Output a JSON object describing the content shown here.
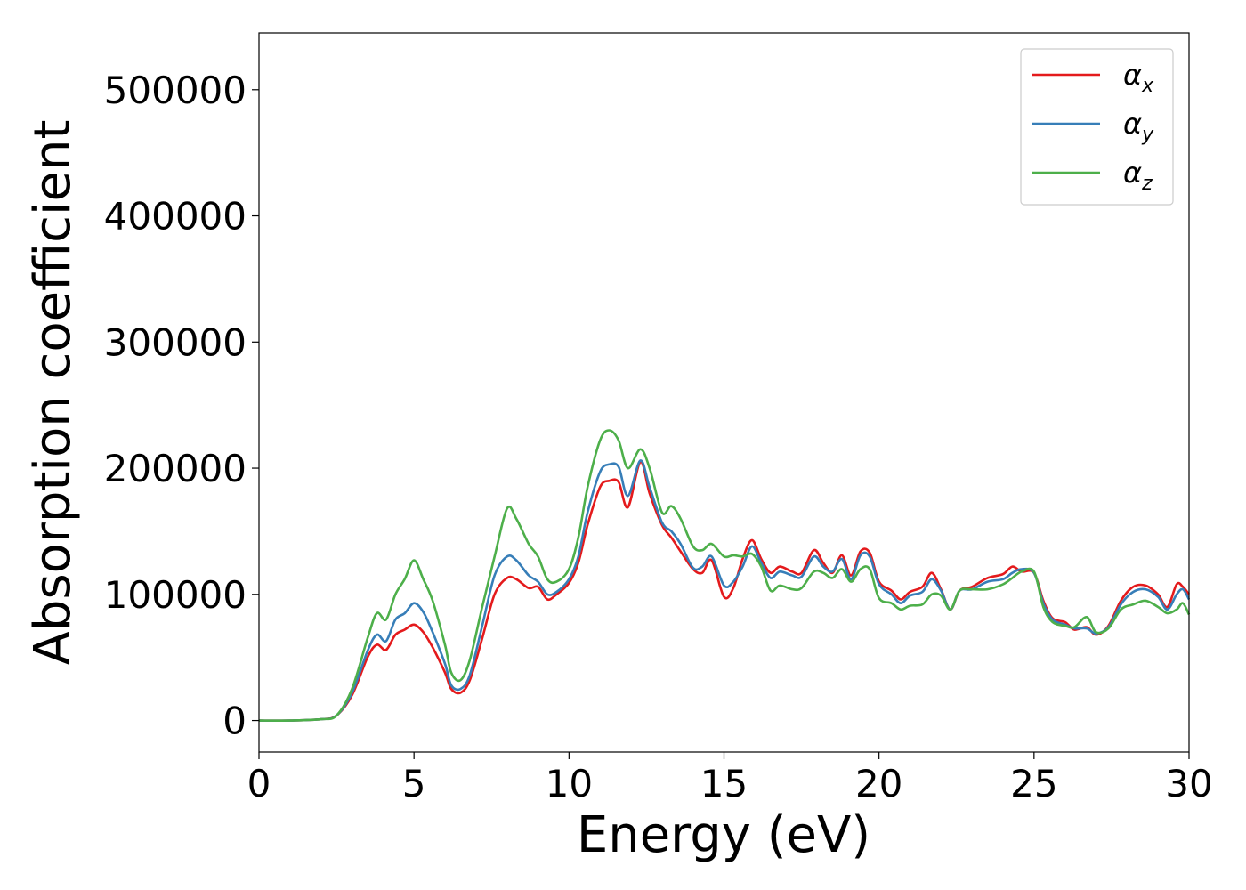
{
  "chart_data": {
    "type": "line",
    "xlabel": "Energy (eV)",
    "ylabel": "Absorption coefficient",
    "xlim": [
      0,
      30
    ],
    "ylim": [
      -25000,
      545000
    ],
    "xticks": [
      0,
      5,
      10,
      15,
      20,
      25,
      30
    ],
    "yticks": [
      0,
      100000,
      200000,
      300000,
      400000,
      500000
    ],
    "grid": false,
    "legend_position": "top-right",
    "series": [
      {
        "name": "α_x",
        "label_main": "α",
        "label_sub": "x",
        "color": "#e41a1c",
        "x": [
          0,
          1,
          2,
          2.5,
          3,
          3.5,
          3.8,
          4.1,
          4.4,
          4.7,
          5,
          5.3,
          5.6,
          6,
          6.2,
          6.5,
          6.8,
          7.2,
          7.6,
          8,
          8.3,
          8.7,
          9,
          9.3,
          9.6,
          10,
          10.3,
          10.6,
          11,
          11.3,
          11.6,
          11.9,
          12.3,
          12.6,
          13,
          13.3,
          13.6,
          14,
          14.3,
          14.6,
          15,
          15.3,
          15.6,
          15.9,
          16.2,
          16.5,
          16.8,
          17.2,
          17.5,
          17.9,
          18.2,
          18.5,
          18.8,
          19.1,
          19.4,
          19.7,
          20,
          20.4,
          20.7,
          21,
          21.4,
          21.7,
          22,
          22.3,
          22.6,
          23,
          23.5,
          24,
          24.3,
          24.6,
          25,
          25.3,
          25.6,
          26,
          26.3,
          26.7,
          27,
          27.4,
          27.8,
          28.2,
          28.6,
          29,
          29.3,
          29.6,
          29.8,
          30
        ],
        "y": [
          0,
          0,
          1000,
          4000,
          20000,
          50000,
          60000,
          56000,
          68000,
          72000,
          76000,
          70000,
          58000,
          38000,
          25000,
          22000,
          32000,
          65000,
          100000,
          113000,
          112000,
          105000,
          106000,
          96000,
          100000,
          109000,
          125000,
          155000,
          185000,
          190000,
          189000,
          169000,
          205000,
          180000,
          155000,
          145000,
          134000,
          120000,
          117000,
          127000,
          98000,
          105000,
          128000,
          143000,
          128000,
          117000,
          122000,
          118000,
          117000,
          135000,
          125000,
          117000,
          131000,
          115000,
          134000,
          133000,
          110000,
          103000,
          96000,
          102000,
          106000,
          117000,
          104000,
          88000,
          103000,
          106000,
          113000,
          116000,
          122000,
          118000,
          117000,
          95000,
          81000,
          78000,
          72000,
          74000,
          68000,
          75000,
          95000,
          106000,
          107000,
          100000,
          90000,
          108000,
          106000,
          100000
        ]
      },
      {
        "name": "α_y",
        "label_main": "α",
        "label_sub": "y",
        "color": "#377eb8",
        "x": [
          0,
          1,
          2,
          2.5,
          3,
          3.5,
          3.8,
          4.1,
          4.4,
          4.7,
          5,
          5.3,
          5.6,
          6,
          6.2,
          6.5,
          6.8,
          7.2,
          7.6,
          8,
          8.3,
          8.7,
          9,
          9.3,
          9.6,
          10,
          10.3,
          10.6,
          11,
          11.3,
          11.6,
          11.9,
          12.3,
          12.6,
          13,
          13.3,
          13.6,
          14,
          14.3,
          14.6,
          15,
          15.3,
          15.6,
          15.9,
          16.2,
          16.5,
          16.8,
          17.2,
          17.5,
          17.9,
          18.2,
          18.5,
          18.8,
          19.1,
          19.4,
          19.7,
          20,
          20.4,
          20.7,
          21,
          21.4,
          21.7,
          22,
          22.3,
          22.6,
          23,
          23.5,
          24,
          24.3,
          24.6,
          25,
          25.3,
          25.6,
          26,
          26.3,
          26.7,
          27,
          27.4,
          27.8,
          28.2,
          28.6,
          29,
          29.3,
          29.6,
          29.8,
          30
        ],
        "y": [
          0,
          0,
          1000,
          4000,
          22000,
          55000,
          68000,
          63000,
          80000,
          85000,
          93000,
          86000,
          70000,
          45000,
          28000,
          25000,
          36000,
          75000,
          115000,
          130000,
          127000,
          115000,
          110000,
          100000,
          102000,
          112000,
          130000,
          165000,
          197000,
          203000,
          201000,
          178000,
          206000,
          185000,
          157000,
          150000,
          140000,
          121000,
          122000,
          130000,
          107000,
          110000,
          122000,
          138000,
          125000,
          113000,
          118000,
          115000,
          114000,
          130000,
          122000,
          118000,
          128000,
          112000,
          131000,
          130000,
          108000,
          100000,
          93000,
          99000,
          102000,
          112000,
          103000,
          88000,
          103000,
          104000,
          110000,
          112000,
          117000,
          120000,
          117000,
          93000,
          80000,
          76000,
          73000,
          73000,
          69000,
          74000,
          92000,
          102000,
          104000,
          98000,
          88000,
          100000,
          104000,
          96000
        ]
      },
      {
        "name": "α_z",
        "label_main": "α",
        "label_sub": "z",
        "color": "#4daf4a",
        "x": [
          0,
          1,
          2,
          2.5,
          3,
          3.5,
          3.8,
          4.1,
          4.4,
          4.7,
          5,
          5.3,
          5.6,
          6,
          6.2,
          6.5,
          6.8,
          7.2,
          7.6,
          8,
          8.3,
          8.7,
          9,
          9.3,
          9.6,
          10,
          10.3,
          10.6,
          11,
          11.3,
          11.6,
          11.9,
          12.3,
          12.6,
          13,
          13.3,
          13.6,
          14,
          14.3,
          14.6,
          15,
          15.3,
          15.6,
          15.9,
          16.2,
          16.5,
          16.8,
          17.2,
          17.5,
          17.9,
          18.2,
          18.5,
          18.8,
          19.1,
          19.4,
          19.7,
          20,
          20.4,
          20.7,
          21,
          21.4,
          21.7,
          22,
          22.3,
          22.6,
          23,
          23.5,
          24,
          24.3,
          24.6,
          25,
          25.3,
          25.6,
          26,
          26.3,
          26.7,
          27,
          27.4,
          27.8,
          28.2,
          28.6,
          29,
          29.3,
          29.6,
          29.8,
          30
        ],
        "y": [
          0,
          0,
          1000,
          4000,
          25000,
          65000,
          85000,
          80000,
          100000,
          112000,
          127000,
          112000,
          95000,
          60000,
          38000,
          32000,
          48000,
          90000,
          130000,
          168000,
          160000,
          140000,
          130000,
          112000,
          110000,
          120000,
          145000,
          185000,
          222000,
          230000,
          222000,
          200000,
          215000,
          200000,
          165000,
          170000,
          160000,
          138000,
          135000,
          140000,
          130000,
          131000,
          130000,
          132000,
          122000,
          103000,
          107000,
          104000,
          105000,
          118000,
          117000,
          113000,
          120000,
          110000,
          120000,
          120000,
          97000,
          93000,
          88000,
          91000,
          92000,
          100000,
          99000,
          88000,
          103000,
          104000,
          104000,
          108000,
          113000,
          118000,
          118000,
          90000,
          78000,
          75000,
          74000,
          82000,
          70000,
          73000,
          88000,
          92000,
          95000,
          90000,
          85000,
          88000,
          93000,
          84000
        ]
      }
    ]
  }
}
